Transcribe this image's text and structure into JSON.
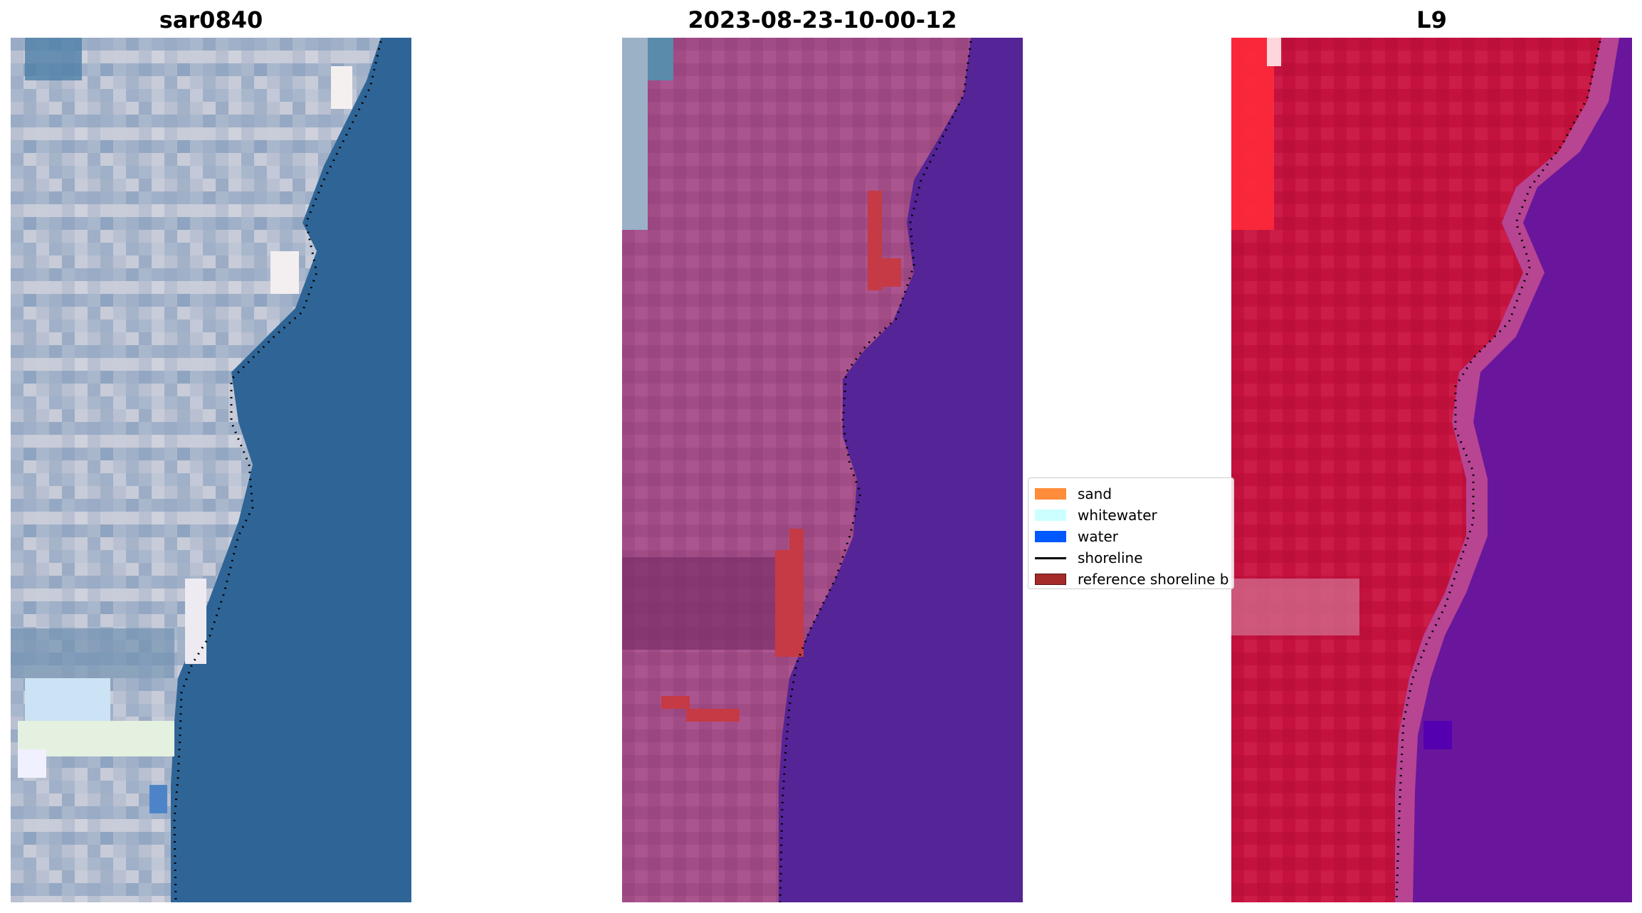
{
  "panels": [
    {
      "title": "sar0840",
      "image": "true-color satellite image with land (left) and ocean (right)"
    },
    {
      "title": "2023-08-23-10-00-12",
      "image": "classified image overlay with land in magenta and water in purple"
    },
    {
      "title": "L9",
      "image": "false-color image with land in red and water in purple"
    }
  ],
  "legend": {
    "items": [
      {
        "label": "sand",
        "color": "#ff8c3a"
      },
      {
        "label": "whitewater",
        "color": "#ccffff"
      },
      {
        "label": "water",
        "color": "#0059ff"
      },
      {
        "label": "shoreline",
        "color": "#000000"
      },
      {
        "label": "reference shoreline b",
        "color": "#a52a2a"
      }
    ]
  },
  "colors": {
    "ocean_true": "#2f6596",
    "land_true": "#b7bfd0",
    "land_class": "#a24c86",
    "water_class": "#552496",
    "land_false": "#c4123f",
    "water_false": "#6a169c",
    "reference_band": "#c53a44"
  }
}
